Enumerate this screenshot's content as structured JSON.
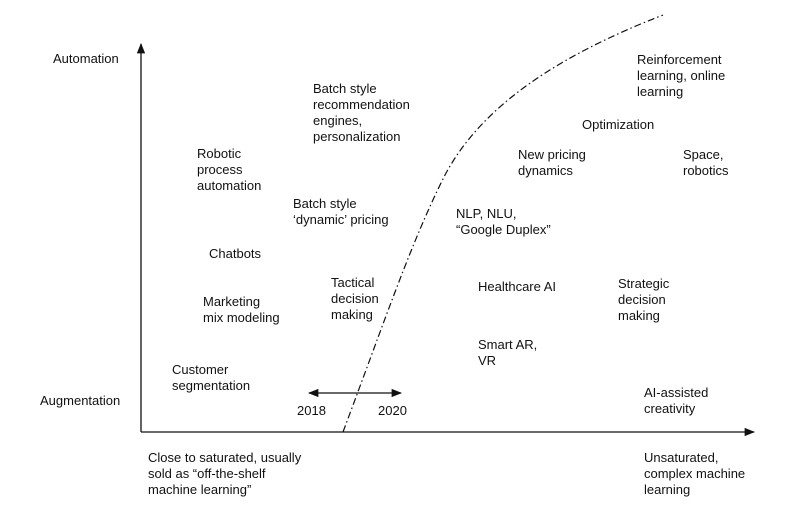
{
  "axis": {
    "y_top": "Automation",
    "y_bottom": "Augmentation",
    "x_left": "Close to saturated, usually\nsold as “off-the-shelf\nmachine learning”",
    "x_right": "Unsaturated,\ncomplex machine\nlearning"
  },
  "items": {
    "batch_recommendation": "Batch style\nrecommendation\nengines,\npersonalization",
    "rpa": "Robotic\nprocess\nautomation",
    "batch_dynamic_pricing": "Batch style\n‘dynamic’ pricing",
    "chatbots": "Chatbots",
    "marketing_mix": "Marketing\nmix modeling",
    "tactical": "Tactical\ndecision\nmaking",
    "customer_segmentation": "Customer\nsegmentation",
    "reinforcement": "Reinforcement\nlearning, online\nlearning",
    "optimization": "Optimization",
    "new_pricing": "New pricing\ndynamics",
    "space_robotics": "Space,\nrobotics",
    "nlp": "NLP, NLU,\n“Google Duplex”",
    "healthcare": "Healthcare AI",
    "strategic": "Strategic\ndecision\nmaking",
    "smart_ar": "Smart AR,\nVR",
    "ai_creativity": "AI-assisted\ncreativity"
  },
  "timeline": {
    "start": "2018",
    "end": "2020"
  },
  "colors": {
    "text": "#111111",
    "lines": "#111111",
    "background": "#ffffff"
  }
}
